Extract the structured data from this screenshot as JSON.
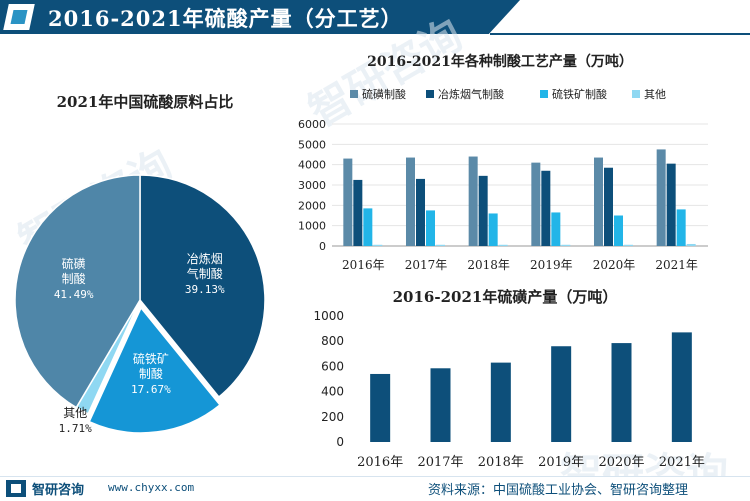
{
  "header": {
    "title": "2016-2021年硫酸产量（分工艺）"
  },
  "watermarks": [
    "智研咨询",
    "智研咨询",
    "智研咨询"
  ],
  "footer": {
    "brand": "智研咨询",
    "url": "www.chyxx.com",
    "source": "资料来源：中国硫酸工业协会、智研咨询整理"
  },
  "colors": {
    "primary": "#0d4f7a",
    "series": [
      "#5b8aa8",
      "#0d4f7a",
      "#22b5e8",
      "#8fd8f2"
    ]
  },
  "chart_data": [
    {
      "type": "pie",
      "title": "2021年中国硫酸原料占比",
      "slices": [
        {
          "label": "冶炼烟气制酸",
          "value": 39.13,
          "value_label": "39.13%",
          "color": "#0d4f7a"
        },
        {
          "label": "硫铁矿制酸",
          "value": 17.67,
          "value_label": "17.67%",
          "color": "#1596d6"
        },
        {
          "label": "其他",
          "value": 1.71,
          "value_label": "1.71%",
          "color": "#8fd8f2"
        },
        {
          "label": "硫磺制酸",
          "value": 41.49,
          "value_label": "41.49%",
          "color": "#4f86a8"
        }
      ],
      "start_angle_deg": 90,
      "direction": "clockwise"
    },
    {
      "type": "bar",
      "title": "2016-2021年各种制酸工艺产量（万吨）",
      "categories": [
        "2016年",
        "2017年",
        "2018年",
        "2019年",
        "2020年",
        "2021年"
      ],
      "series": [
        {
          "name": "硫磺制酸",
          "values": [
            4300,
            4350,
            4400,
            4100,
            4350,
            4750
          ]
        },
        {
          "name": "冶炼烟气制酸",
          "values": [
            3250,
            3300,
            3450,
            3700,
            3850,
            4050
          ]
        },
        {
          "name": "硫铁矿制酸",
          "values": [
            1850,
            1750,
            1600,
            1650,
            1500,
            1800
          ]
        },
        {
          "name": "其他",
          "values": [
            60,
            60,
            60,
            60,
            60,
            100
          ]
        }
      ],
      "yticks": [
        "0",
        "500",
        "1000",
        "1500",
        "2000",
        "2500",
        "3000",
        "3500",
        "4000",
        "4500",
        "5000",
        "5500",
        "6000"
      ],
      "ylim": [
        0,
        6000
      ],
      "legend_position": "top",
      "grid": true
    },
    {
      "type": "bar",
      "title": "2016-2021年硫磺产量（万吨）",
      "categories": [
        "2016年",
        "2017年",
        "2018年",
        "2019年",
        "2020年",
        "2021年"
      ],
      "series": [
        {
          "values": [
            540,
            585,
            630,
            760,
            785,
            870
          ]
        }
      ],
      "yticks": [
        "0",
        "200",
        "400",
        "600",
        "800",
        "1000"
      ],
      "ylim": [
        0,
        1000
      ],
      "grid": false
    }
  ]
}
